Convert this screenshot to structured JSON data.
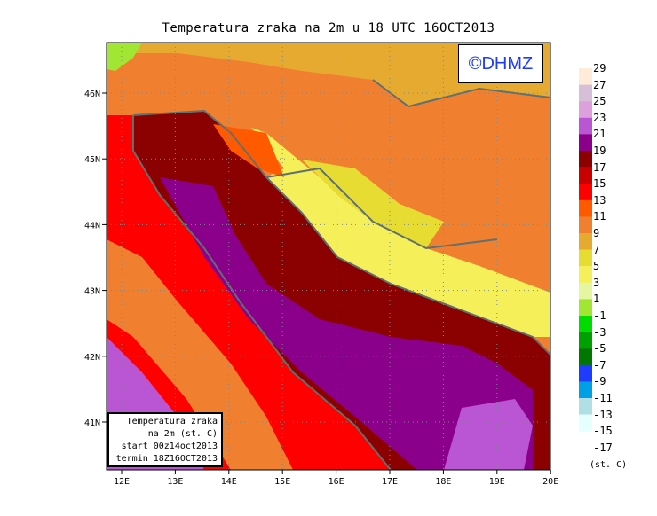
{
  "title": "Temperatura zraka na 2m u 18 UTC 16OCT2013",
  "logo": "©DHMZ",
  "info_box": [
    "Temperatura zraka",
    "na 2m (st. C)",
    "start 00z14oct2013",
    "termin 18Z16OCT2013"
  ],
  "lon_ticks": [
    "12E",
    "13E",
    "14E",
    "15E",
    "16E",
    "17E",
    "18E",
    "19E",
    "20E"
  ],
  "lat_ticks": [
    "46N",
    "45N",
    "44N",
    "43N",
    "42N",
    "41N"
  ],
  "legend": {
    "labels": [
      "29",
      "27",
      "25",
      "23",
      "21",
      "19",
      "17",
      "15",
      "13",
      "11",
      "9",
      "7",
      "5",
      "3",
      "1",
      "-1",
      "-3",
      "-5",
      "-7",
      "-9",
      "-11",
      "-13",
      "-15",
      "-17"
    ],
    "colors": [
      "#ffebd7",
      "#d8bfd8",
      "#dda0dd",
      "#ba55d3",
      "#8b008b",
      "#8b0000",
      "#c80000",
      "#ff0000",
      "#ff5a00",
      "#f08030",
      "#e6aa30",
      "#e6dc32",
      "#f5f05a",
      "#e6f5a0",
      "#a0e632",
      "#00dc00",
      "#00a000",
      "#007800",
      "#1e3cff",
      "#00a0e6",
      "#b0e0e6",
      "#e6ffff"
    ],
    "units": "(st. C)"
  }
}
